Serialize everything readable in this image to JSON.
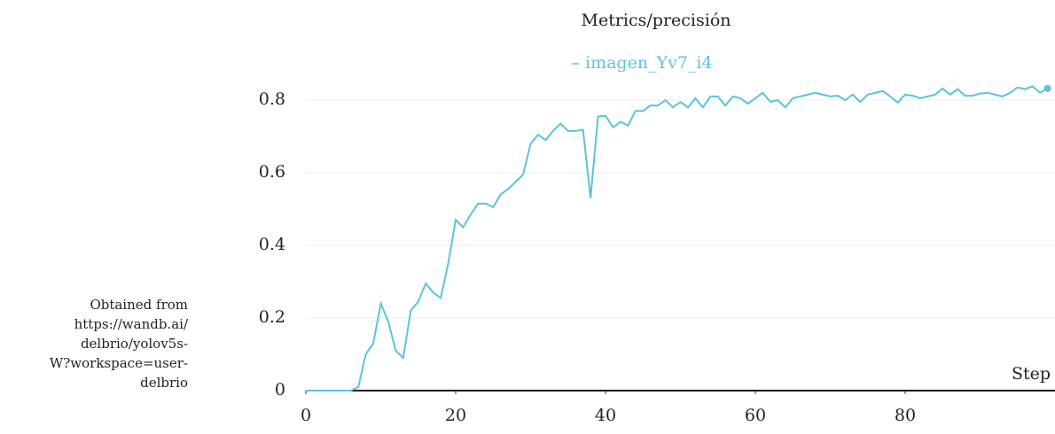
{
  "chart_data": {
    "type": "line",
    "title": "Metrics/precisión",
    "xlabel": "Step",
    "note": [
      "Obtained from",
      "https://wandb.ai/",
      "delbrio/yolov5s-",
      "W?workspace=user-",
      "delbrio"
    ],
    "x": [
      0,
      1,
      2,
      3,
      4,
      5,
      6,
      7,
      8,
      9,
      10,
      11,
      12,
      13,
      14,
      15,
      16,
      17,
      18,
      19,
      20,
      21,
      22,
      23,
      24,
      25,
      26,
      27,
      28,
      29,
      30,
      31,
      32,
      33,
      34,
      35,
      36,
      37,
      38,
      39,
      40,
      41,
      42,
      43,
      44,
      45,
      46,
      47,
      48,
      49,
      50,
      51,
      52,
      53,
      54,
      55,
      56,
      57,
      58,
      59,
      60,
      61,
      62,
      63,
      64,
      65,
      66,
      67,
      68,
      69,
      70,
      71,
      72,
      73,
      74,
      75,
      76,
      77,
      78,
      79,
      80,
      81,
      82,
      83,
      84,
      85,
      86,
      87,
      88,
      89,
      90,
      91,
      92,
      93,
      94,
      95,
      96,
      97,
      98,
      99
    ],
    "series": [
      {
        "name": "imagen_Yv7_i4",
        "color": "#5bc3de",
        "values": [
          0,
          0,
          0,
          0,
          0,
          0,
          0,
          0.01,
          0.1,
          0.13,
          0.24,
          0.19,
          0.11,
          0.09,
          0.22,
          0.245,
          0.295,
          0.27,
          0.255,
          0.35,
          0.47,
          0.45,
          0.485,
          0.515,
          0.515,
          0.505,
          0.54,
          0.555,
          0.575,
          0.595,
          0.68,
          0.705,
          0.69,
          0.715,
          0.735,
          0.715,
          0.715,
          0.718,
          0.53,
          0.755,
          0.757,
          0.725,
          0.74,
          0.73,
          0.77,
          0.77,
          0.785,
          0.785,
          0.8,
          0.78,
          0.795,
          0.78,
          0.805,
          0.78,
          0.81,
          0.81,
          0.785,
          0.81,
          0.805,
          0.79,
          0.805,
          0.82,
          0.795,
          0.8,
          0.78,
          0.805,
          0.81,
          0.815,
          0.82,
          0.815,
          0.81,
          0.812,
          0.8,
          0.815,
          0.795,
          0.815,
          0.82,
          0.825,
          0.81,
          0.793,
          0.815,
          0.812,
          0.805,
          0.81,
          0.815,
          0.832,
          0.815,
          0.83,
          0.812,
          0.812,
          0.818,
          0.82,
          0.815,
          0.81,
          0.82,
          0.835,
          0.83,
          0.838,
          0.82,
          0.832
        ]
      }
    ],
    "xlim": [
      0,
      100
    ],
    "ylim": [
      0,
      0.85
    ],
    "xticks": [
      0,
      20,
      40,
      60,
      80
    ],
    "yticks": [
      0,
      0.2,
      0.4,
      0.6,
      0.8
    ],
    "grid": true
  }
}
